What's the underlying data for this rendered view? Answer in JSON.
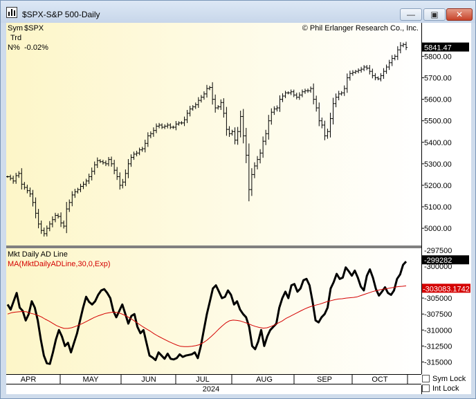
{
  "window": {
    "title": "$SPX-S&P 500-Daily",
    "minimize_icon": "minimize-icon",
    "maximize_icon": "maximize-icon",
    "close_icon": "close-icon"
  },
  "info": {
    "sym_label": "Sym",
    "sym_value": "$SPX",
    "trd_label": "Trd",
    "n_label": "N%",
    "n_value": "-0.02%"
  },
  "copyright": "© Phil Erlanger Research Co., Inc.",
  "chart_data": [
    {
      "type": "ohlc",
      "name": "S&P 500 Daily price",
      "ylim": [
        4920,
        5930
      ],
      "yticks": [
        5000,
        5100,
        5200,
        5300,
        5400,
        5500,
        5600,
        5700,
        5800
      ],
      "ytick_labels": [
        "5000.00",
        "5100.00",
        "5200.00",
        "5300.00",
        "5400.00",
        "5500.00",
        "5600.00",
        "5700.00",
        "5800.00"
      ],
      "last_value": 5841.47,
      "last_label": "5841.47",
      "series": [
        {
          "name": "$SPX",
          "values": [
            5240,
            5232,
            5220,
            5245,
            5255,
            5205,
            5190,
            5175,
            5160,
            5120,
            5070,
            5020,
            4990,
            4975,
            5000,
            5020,
            5040,
            5060,
            5055,
            5025,
            5010,
            5090,
            5120,
            5155,
            5170,
            5180,
            5195,
            5205,
            5220,
            5240,
            5265,
            5295,
            5315,
            5310,
            5305,
            5300,
            5320,
            5300,
            5270,
            5240,
            5200,
            5215,
            5255,
            5300,
            5330,
            5345,
            5350,
            5365,
            5370,
            5395,
            5430,
            5440,
            5455,
            5475,
            5480,
            5470,
            5475,
            5480,
            5470,
            5470,
            5485,
            5490,
            5490,
            5505,
            5535,
            5555,
            5565,
            5575,
            5595,
            5610,
            5625,
            5650,
            5655,
            5600,
            5560,
            5565,
            5585,
            5535,
            5460,
            5440,
            5450,
            5410,
            5450,
            5520,
            5430,
            5340,
            5180,
            5250,
            5290,
            5320,
            5350,
            5405,
            5440,
            5500,
            5540,
            5555,
            5560,
            5600,
            5615,
            5630,
            5630,
            5635,
            5620,
            5610,
            5620,
            5635,
            5640,
            5640,
            5650,
            5600,
            5560,
            5500,
            5480,
            5430,
            5450,
            5510,
            5580,
            5610,
            5625,
            5630,
            5650,
            5700,
            5720,
            5725,
            5730,
            5735,
            5740,
            5750,
            5745,
            5730,
            5710,
            5700,
            5695,
            5710,
            5730,
            5750,
            5770,
            5790,
            5800,
            5830,
            5850,
            5855,
            5841.47
          ]
        }
      ]
    },
    {
      "type": "line",
      "name": "Mkt Daily AD Line",
      "ylim": [
        -316900,
        -297200
      ],
      "yticks": [
        -315000,
        -312500,
        -310000,
        -307500,
        -305000
      ],
      "ytick_labels": [
        "-315000",
        "-312500",
        "-310000",
        "-307500",
        "-305000"
      ],
      "top_label": "-297500",
      "hidden_label": "-300000",
      "legend": [
        "Mkt Daily AD Line",
        "MA(MktDailyADLine,30,0,Exp)"
      ],
      "last_value_label": "-299282",
      "ma_last_value_label": "-303083.1742",
      "series": [
        {
          "name": "Mkt Daily AD Line",
          "color": "#000000",
          "values": [
            -306000,
            -306800,
            -305500,
            -304200,
            -306500,
            -307000,
            -308500,
            -307500,
            -305500,
            -306500,
            -308500,
            -311500,
            -314000,
            -315200,
            -315300,
            -313500,
            -311500,
            -310000,
            -311000,
            -312500,
            -312000,
            -313500,
            -312000,
            -310500,
            -308500,
            -306500,
            -304800,
            -305600,
            -306000,
            -305500,
            -304500,
            -303800,
            -303600,
            -304200,
            -305000,
            -307000,
            -308000,
            -307000,
            -306000,
            -307500,
            -309000,
            -307800,
            -307500,
            -309500,
            -310500,
            -310000,
            -312000,
            -314000,
            -314300,
            -314700,
            -313500,
            -314000,
            -314500,
            -313700,
            -314500,
            -314600,
            -314400,
            -313800,
            -314200,
            -314000,
            -313900,
            -313800,
            -313500,
            -314400,
            -312500,
            -310000,
            -307500,
            -305500,
            -303500,
            -303000,
            -304000,
            -305000,
            -304800,
            -303800,
            -304500,
            -306000,
            -305500,
            -306800,
            -307500,
            -308000,
            -309500,
            -312500,
            -313000,
            -311800,
            -310000,
            -312500,
            -311000,
            -310000,
            -309500,
            -309000,
            -306500,
            -305000,
            -304000,
            -305000,
            -303000,
            -302800,
            -304000,
            -303500,
            -302200,
            -302000,
            -303000,
            -305500,
            -308500,
            -308800,
            -308000,
            -307500,
            -306500,
            -303500,
            -302500,
            -301200,
            -302000,
            -301800,
            -300200,
            -300800,
            -301500,
            -300700,
            -301800,
            -303200,
            -303800,
            -301500,
            -300500,
            -301800,
            -303600,
            -304600,
            -304000,
            -303300,
            -304200,
            -304500,
            -303800,
            -302000,
            -301300,
            -299800,
            -299282
          ]
        },
        {
          "name": "MA(MktDailyADLine,30,0,Exp)",
          "color": "#d40000",
          "values": [
            -307500,
            -307300,
            -307200,
            -307150,
            -307100,
            -307150,
            -307350,
            -307500,
            -307700,
            -307950,
            -308300,
            -308600,
            -308950,
            -309300,
            -309550,
            -309750,
            -309750,
            -309650,
            -309450,
            -309200,
            -308950,
            -308650,
            -308350,
            -308050,
            -307800,
            -307600,
            -307400,
            -307300,
            -307200,
            -307250,
            -307400,
            -307650,
            -307950,
            -308300,
            -308700,
            -309100,
            -309500,
            -309850,
            -310200,
            -310600,
            -310950,
            -311250,
            -311550,
            -311850,
            -312100,
            -312350,
            -312550,
            -312600,
            -312600,
            -312550,
            -312450,
            -312300,
            -312000,
            -311600,
            -311100,
            -310550,
            -309950,
            -309400,
            -308900,
            -308550,
            -308450,
            -308500,
            -308600,
            -308800,
            -309000,
            -309250,
            -309450,
            -309600,
            -309700,
            -309650,
            -309450,
            -309200,
            -308900,
            -308600,
            -308200,
            -307900,
            -307600,
            -307300,
            -307000,
            -306700,
            -306450,
            -306250,
            -306100,
            -305950,
            -305750,
            -305550,
            -305400,
            -305250,
            -305150,
            -305100,
            -305000,
            -304950,
            -304900,
            -304800,
            -304600,
            -304400,
            -304200,
            -304000,
            -303850,
            -303700,
            -303600,
            -303500,
            -303400,
            -303300,
            -303200,
            -303150,
            -303083
          ]
        }
      ]
    }
  ],
  "x_axis": {
    "months": [
      "APR",
      "MAY",
      "JUN",
      "JUL",
      "AUG",
      "SEP",
      "OCT"
    ],
    "year": "2024"
  },
  "controls": {
    "sym_lock": "Sym Lock",
    "int_lock": "Int Lock"
  }
}
